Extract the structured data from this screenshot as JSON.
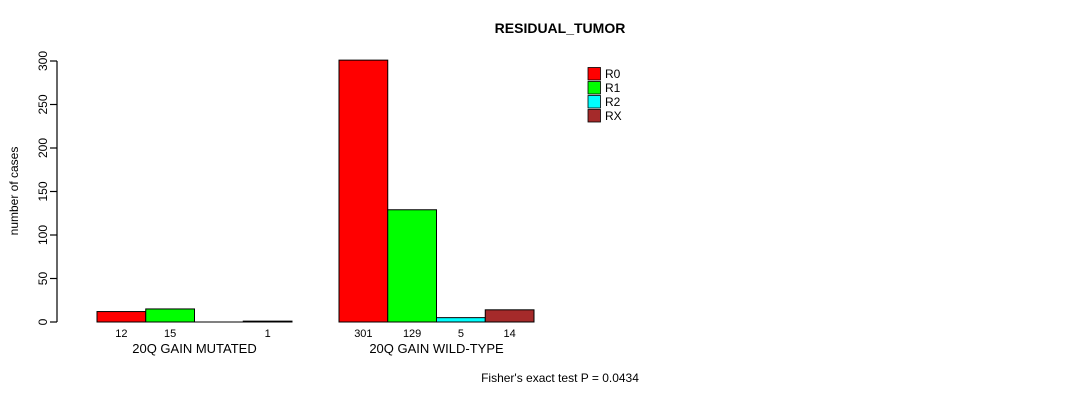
{
  "chart_data": {
    "type": "bar",
    "title": "RESIDUAL_TUMOR",
    "ylabel": "number of cases",
    "xlabel": "",
    "ylim": [
      0,
      300
    ],
    "yticks": [
      0,
      50,
      100,
      150,
      200,
      250,
      300
    ],
    "grid": false,
    "legend_position": "top-right-inside",
    "series": [
      "R0",
      "R1",
      "R2",
      "RX"
    ],
    "colors": [
      "#ff0000",
      "#00ff00",
      "#00ffff",
      "#a52a2a"
    ],
    "axis_color": "#000000",
    "bar_border_color": "#000000",
    "groups": [
      {
        "label": "20Q GAIN MUTATED",
        "values": [
          12,
          15,
          0,
          1
        ],
        "bar_labels": [
          "12",
          "15",
          "",
          "1"
        ]
      },
      {
        "label": "20Q GAIN WILD-TYPE",
        "values": [
          301,
          129,
          5,
          14
        ],
        "bar_labels": [
          "301",
          "129",
          "5",
          "14"
        ]
      }
    ],
    "annotation": "Fisher's exact test P = 0.0434"
  }
}
